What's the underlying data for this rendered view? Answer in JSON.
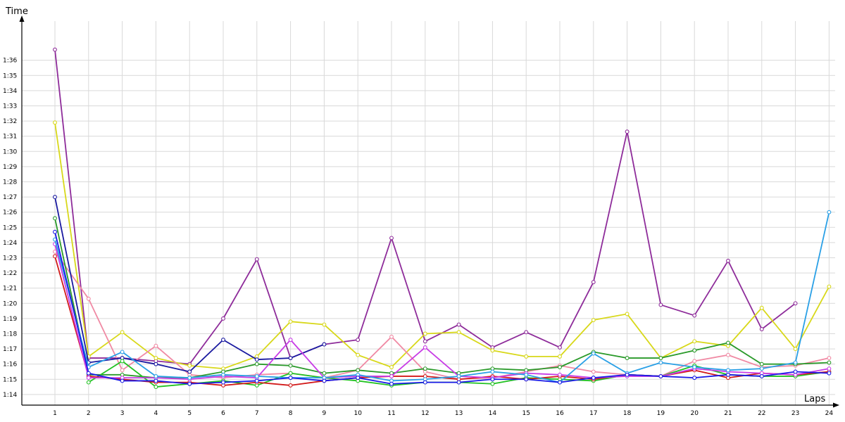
{
  "chart_data": {
    "type": "line",
    "xlabel": "Laps",
    "ylabel": "Time",
    "x": [
      1,
      2,
      3,
      4,
      5,
      6,
      7,
      8,
      9,
      10,
      11,
      12,
      13,
      14,
      15,
      16,
      17,
      18,
      19,
      20,
      21,
      22,
      23,
      24
    ],
    "ylim": [
      73.3,
      98.2
    ],
    "yticks": [
      74,
      75,
      76,
      77,
      78,
      79,
      80,
      81,
      82,
      83,
      84,
      85,
      86,
      87,
      88,
      89,
      90,
      91,
      92,
      93,
      94,
      95,
      96
    ],
    "ytick_labels": [
      "1:14",
      "1:15",
      "1:16",
      "1:17",
      "1:18",
      "1:19",
      "1:20",
      "1:21",
      "1:22",
      "1:23",
      "1:24",
      "1:25",
      "1:26",
      "1:27",
      "1:28",
      "1:29",
      "1:30",
      "1:31",
      "1:32",
      "1:33",
      "1:34",
      "1:35",
      "1:36"
    ],
    "grid": true,
    "series": [
      {
        "color": "#8e2c9a",
        "values": [
          96.7,
          76.4,
          76.4,
          76.2,
          76.0,
          79.0,
          82.9,
          76.4,
          77.3,
          77.6,
          84.3,
          77.5,
          78.6,
          77.1,
          78.1,
          77.1,
          81.4,
          91.3,
          79.9,
          79.2,
          82.8,
          78.3,
          80.0,
          null
        ]
      },
      {
        "color": "#d8d81a",
        "values": [
          91.9,
          76.5,
          78.1,
          76.4,
          75.9,
          75.7,
          76.5,
          78.8,
          78.6,
          76.6,
          75.8,
          78.0,
          78.1,
          76.9,
          76.5,
          76.5,
          78.9,
          79.3,
          76.4,
          77.5,
          77.2,
          79.7,
          77.0,
          81.1
        ]
      },
      {
        "color": "#f08aa4",
        "values": [
          83.4,
          80.3,
          75.6,
          77.2,
          75.3,
          75.1,
          75.3,
          75.4,
          75.1,
          75.6,
          77.8,
          75.5,
          75.0,
          75.1,
          75.5,
          75.9,
          75.5,
          75.3,
          75.2,
          76.2,
          76.6,
          75.8,
          75.9,
          76.4
        ]
      },
      {
        "color": "#1a1aa0",
        "values": [
          87.0,
          76.1,
          76.4,
          76.0,
          75.5,
          77.6,
          76.3,
          76.4,
          77.3,
          null,
          null,
          null,
          null,
          null,
          null,
          null,
          null,
          null,
          null,
          null,
          null,
          null,
          null,
          null
        ]
      },
      {
        "color": "#2a9a2a",
        "values": [
          85.6,
          75.3,
          75.3,
          75.1,
          75.1,
          75.5,
          76.0,
          75.9,
          75.4,
          75.6,
          75.4,
          75.7,
          75.4,
          75.7,
          75.6,
          75.8,
          76.8,
          76.4,
          76.4,
          76.9,
          77.4,
          76.0,
          76.0,
          76.1
        ]
      },
      {
        "color": "#22c222",
        "values": [
          null,
          74.8,
          76.2,
          74.5,
          74.7,
          74.9,
          74.6,
          75.4,
          75.1,
          74.9,
          74.6,
          74.8,
          74.8,
          74.7,
          75.1,
          75.0,
          74.9,
          75.3,
          75.2,
          75.9,
          75.3,
          75.2,
          75.2,
          75.5
        ]
      },
      {
        "color": "#d21a1a",
        "values": [
          83.1,
          75.2,
          75.0,
          74.8,
          74.8,
          74.6,
          74.8,
          74.6,
          74.9,
          75.1,
          75.2,
          75.2,
          75.0,
          75.2,
          75.0,
          75.2,
          75.0,
          75.3,
          75.2,
          75.6,
          75.1,
          75.4,
          75.3,
          75.5
        ]
      },
      {
        "color": "#c83ce6",
        "values": [
          83.9,
          75.1,
          75.1,
          75.1,
          75.0,
          75.2,
          75.1,
          77.6,
          75.1,
          75.2,
          75.2,
          77.1,
          75.2,
          75.1,
          75.4,
          75.3,
          75.1,
          75.2,
          75.2,
          75.7,
          75.5,
          75.4,
          75.3,
          75.7
        ]
      },
      {
        "color": "#2aa0e6",
        "values": [
          84.2,
          75.8,
          76.8,
          75.2,
          75.1,
          75.3,
          75.2,
          75.1,
          75.1,
          75.3,
          74.9,
          75.0,
          75.2,
          75.5,
          75.3,
          74.8,
          76.7,
          75.4,
          76.1,
          75.8,
          75.6,
          75.7,
          76.1,
          86.0
        ]
      },
      {
        "color": "#1a1ae6",
        "values": [
          84.7,
          75.4,
          74.9,
          74.9,
          74.7,
          74.8,
          74.9,
          75.1,
          74.9,
          75.1,
          74.7,
          74.8,
          74.8,
          75.0,
          75.0,
          74.8,
          75.1,
          75.3,
          75.2,
          75.1,
          75.3,
          75.2,
          75.5,
          75.4
        ]
      }
    ]
  }
}
